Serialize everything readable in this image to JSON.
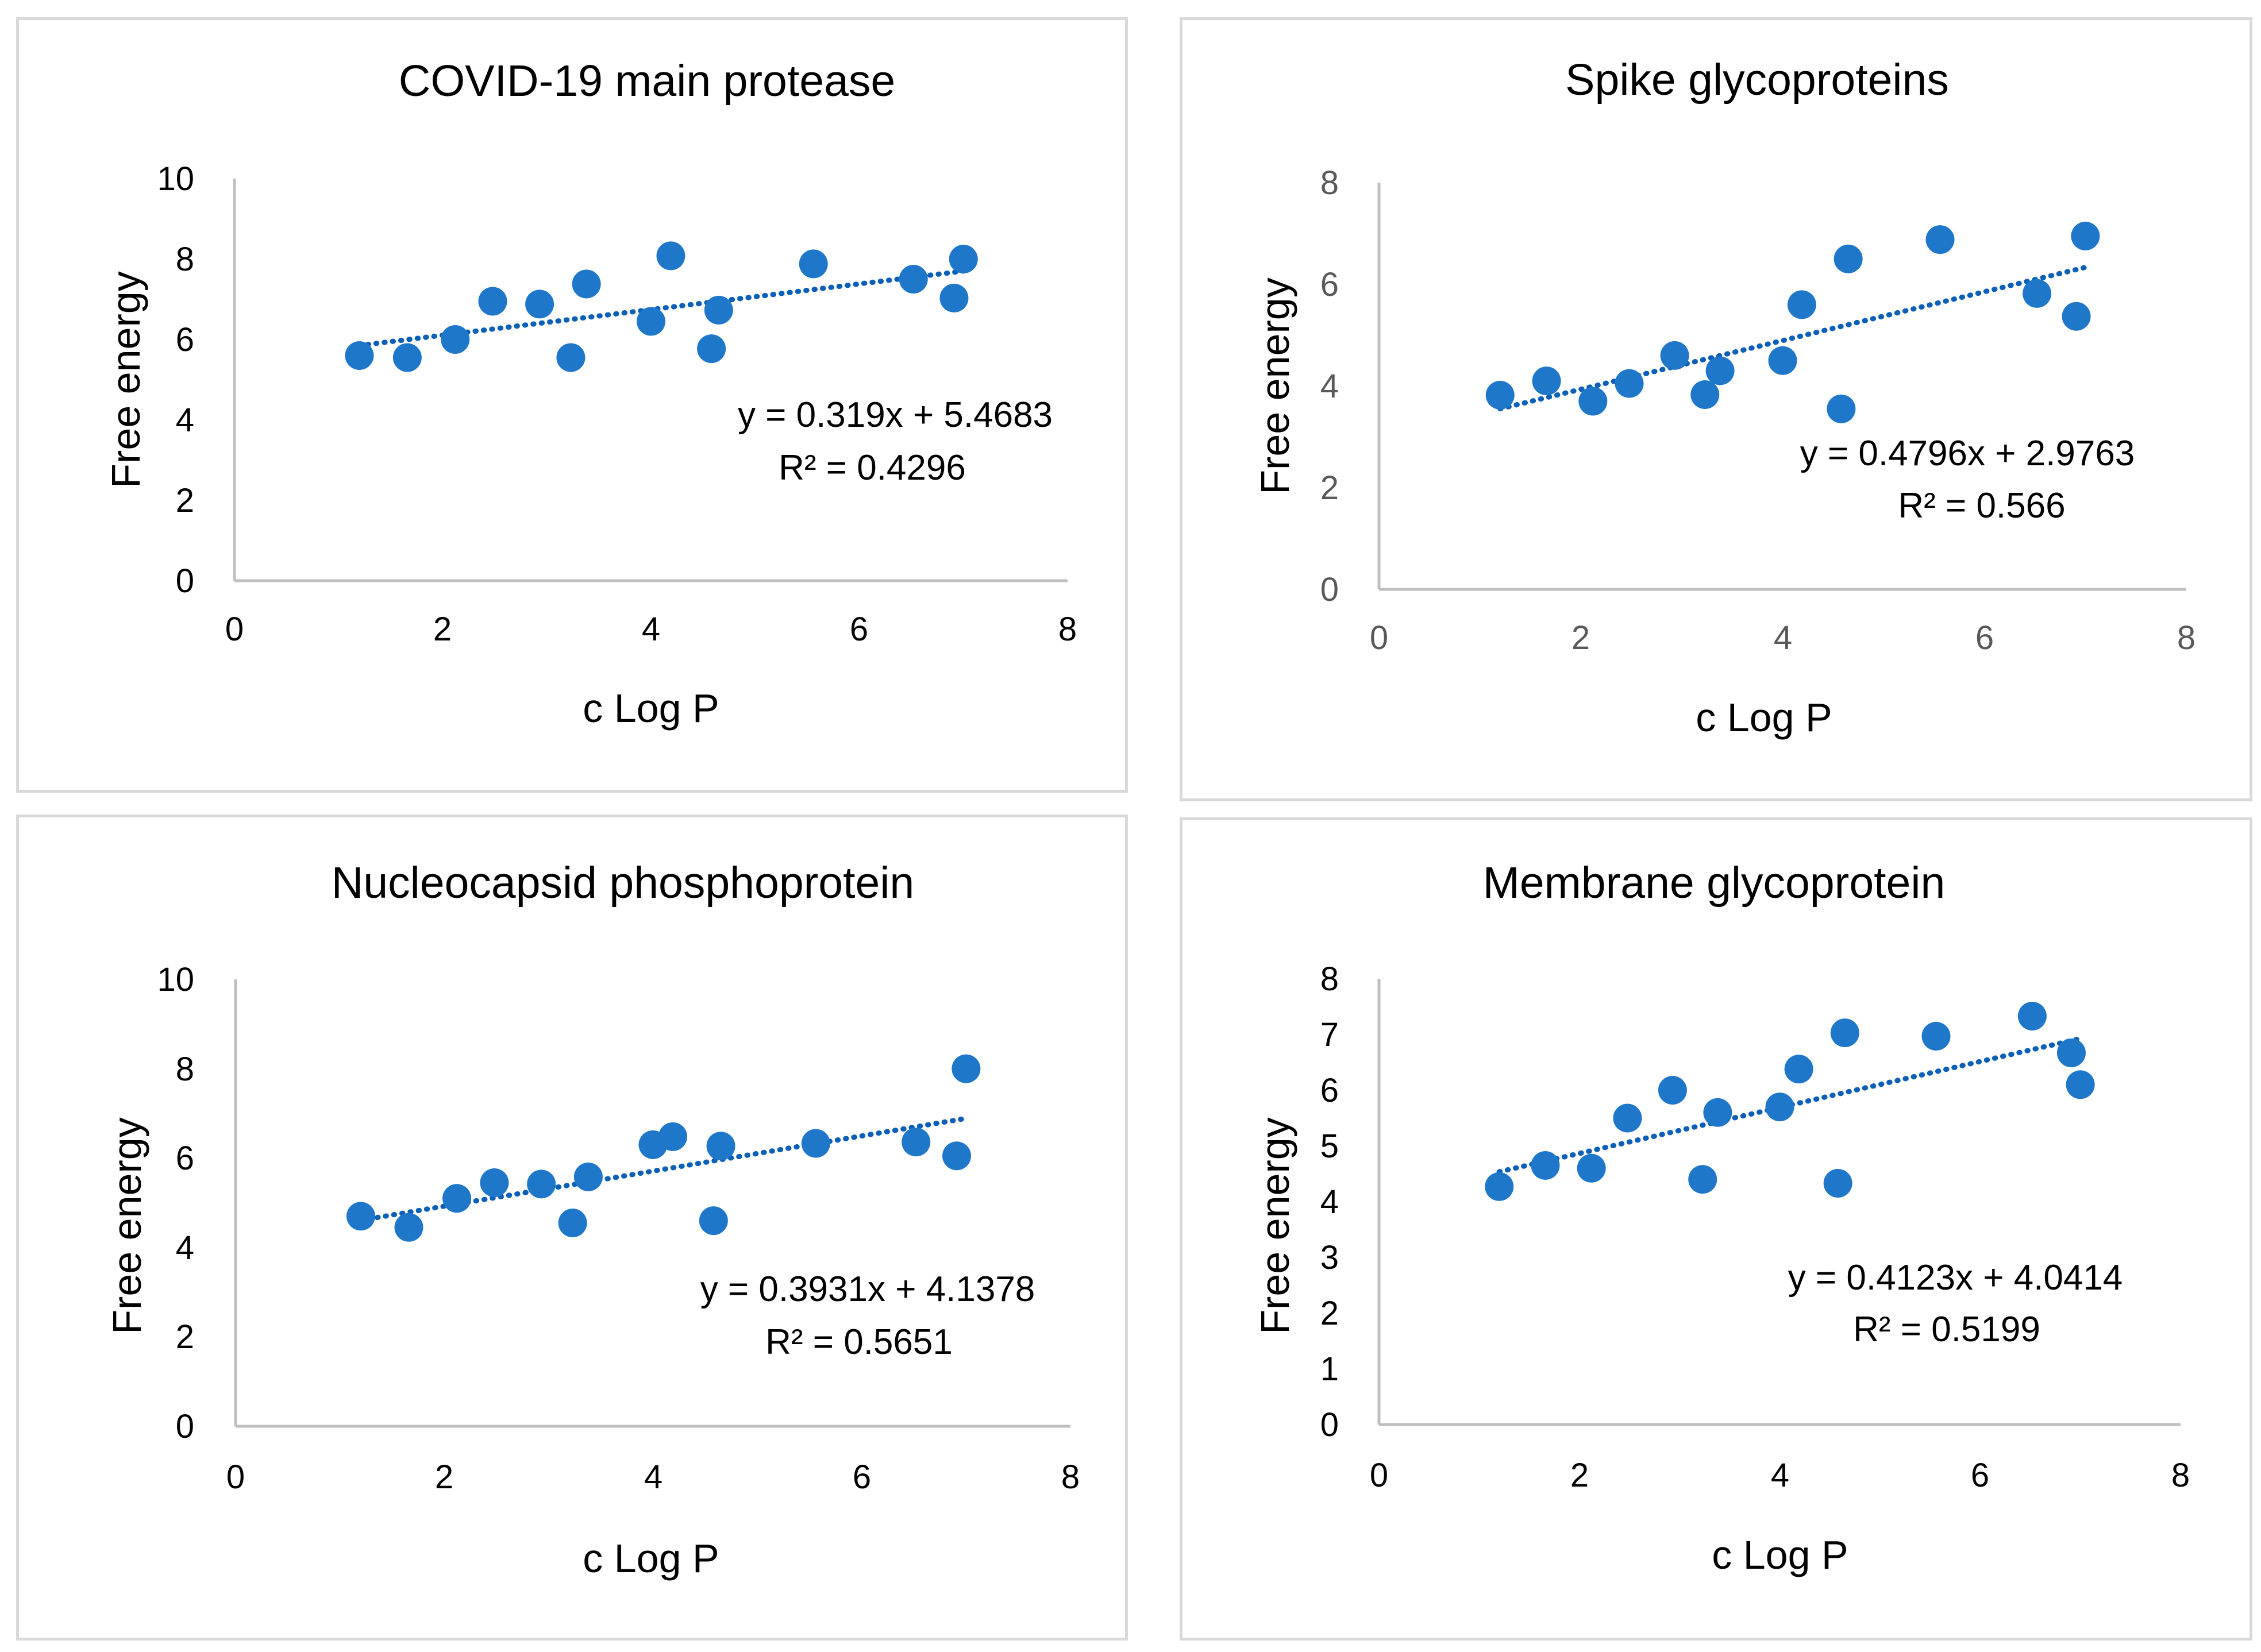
{
  "figure": {
    "background": "#ffffff"
  },
  "colors": {
    "marker": "#1f77c9",
    "trendline": "#0b5fb6",
    "axis": "#bfbfbf",
    "border": "#d9d9d9"
  },
  "chart_data": [
    {
      "type": "scatter",
      "title": "COVID-19 main protease",
      "xlabel": "c Log P",
      "ylabel": "Free energy",
      "xlim": [
        0,
        8
      ],
      "ylim": [
        0,
        10
      ],
      "xticks": [
        "0",
        "2",
        "4",
        "6",
        "8"
      ],
      "yticks": [
        "0",
        "2",
        "4",
        "6",
        "8",
        "10"
      ],
      "ytick_values": [
        0,
        2,
        4,
        6,
        8,
        10
      ],
      "x": [
        1.2,
        1.66,
        2.12,
        2.48,
        2.93,
        3.23,
        3.38,
        4.0,
        4.19,
        4.58,
        4.65,
        5.56,
        6.52,
        6.91,
        7.0
      ],
      "y": [
        5.6,
        5.55,
        6.0,
        6.95,
        6.88,
        5.55,
        7.38,
        6.45,
        8.08,
        5.77,
        6.73,
        7.88,
        7.5,
        7.03,
        8.0
      ],
      "trendline": {
        "slope": 0.319,
        "intercept": 5.4683,
        "x_range": [
          1.2,
          7.0
        ]
      },
      "equation": "y = 0.319x + 5.4683",
      "r2": "R² = 0.4296"
    },
    {
      "type": "scatter",
      "title": "Spike glycoproteins",
      "xlabel": "c Log P",
      "ylabel": "Free energy",
      "xlim": [
        0,
        8
      ],
      "ylim": [
        0,
        8
      ],
      "xticks": [
        "0",
        "2",
        "4",
        "6",
        "8"
      ],
      "yticks": [
        "0",
        "2",
        "4",
        "6",
        "8"
      ],
      "ytick_values": [
        0,
        2,
        4,
        6,
        8
      ],
      "x": [
        1.2,
        1.66,
        2.12,
        2.48,
        2.93,
        3.23,
        3.38,
        4.0,
        4.19,
        4.58,
        4.65,
        5.56,
        6.52,
        6.91,
        7.0
      ],
      "y": [
        3.82,
        4.1,
        3.7,
        4.05,
        4.6,
        3.83,
        4.3,
        4.5,
        5.6,
        3.55,
        6.5,
        6.88,
        5.82,
        5.37,
        6.95
      ],
      "trendline": {
        "slope": 0.4796,
        "intercept": 2.9763,
        "x_range": [
          1.2,
          7.0
        ]
      },
      "equation": "y = 0.4796x + 2.9763",
      "r2": "R² = 0.566"
    },
    {
      "type": "scatter",
      "title": "Nucleocapsid phosphoprotein",
      "xlabel": "c Log P",
      "ylabel": "Free energy",
      "xlim": [
        0,
        8
      ],
      "ylim": [
        0,
        10
      ],
      "xticks": [
        "0",
        "2",
        "4",
        "6",
        "8"
      ],
      "yticks": [
        "0",
        "2",
        "4",
        "6",
        "8",
        "10"
      ],
      "ytick_values": [
        0,
        2,
        4,
        6,
        8,
        10
      ],
      "x": [
        1.2,
        1.66,
        2.12,
        2.48,
        2.93,
        3.23,
        3.38,
        4.0,
        4.19,
        4.58,
        4.65,
        5.56,
        6.52,
        6.91,
        7.0
      ],
      "y": [
        4.7,
        4.45,
        5.1,
        5.45,
        5.42,
        4.55,
        5.58,
        6.3,
        6.48,
        4.6,
        6.27,
        6.33,
        6.36,
        6.05,
        8.0
      ],
      "trendline": {
        "slope": 0.3931,
        "intercept": 4.1378,
        "x_range": [
          1.2,
          7.0
        ]
      },
      "equation": "y = 0.3931x + 4.1378",
      "r2": "R² = 0.5651"
    },
    {
      "type": "scatter",
      "title": "Membrane glycoprotein",
      "xlabel": "c Log P",
      "ylabel": "Free energy",
      "xlim": [
        0,
        8
      ],
      "ylim": [
        0,
        8
      ],
      "xticks": [
        "0",
        "2",
        "4",
        "6",
        "8"
      ],
      "yticks": [
        "0",
        "1",
        "2",
        "3",
        "4",
        "5",
        "6",
        "7",
        "8"
      ],
      "ytick_values": [
        0,
        1,
        2,
        3,
        4,
        5,
        6,
        7,
        8
      ],
      "x": [
        1.2,
        1.66,
        2.12,
        2.48,
        2.93,
        3.23,
        3.38,
        4.0,
        4.19,
        4.58,
        4.65,
        5.56,
        6.52,
        6.91,
        7.0
      ],
      "y": [
        4.27,
        4.65,
        4.6,
        5.5,
        6.0,
        4.4,
        5.6,
        5.7,
        6.38,
        4.33,
        7.03,
        6.97,
        7.33,
        6.67,
        6.1
      ],
      "trendline": {
        "slope": 0.4123,
        "intercept": 4.0414,
        "x_range": [
          1.2,
          7.0
        ]
      },
      "equation": "y = 0.4123x + 4.0414",
      "r2": "R² = 0.5199"
    }
  ]
}
